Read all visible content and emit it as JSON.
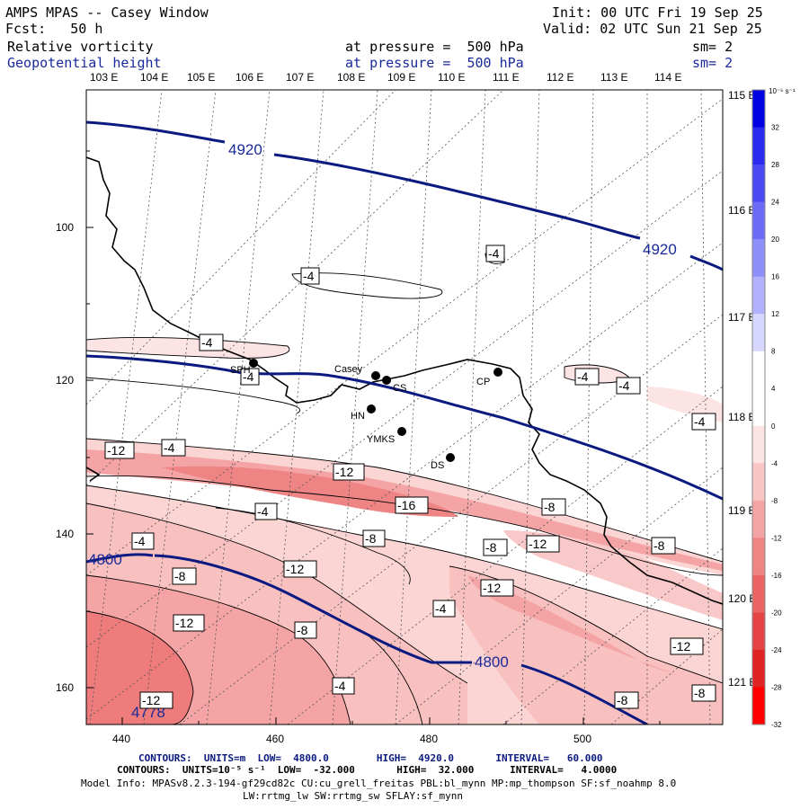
{
  "header": {
    "title": "AMPS MPAS -- Casey Window",
    "init": "Init: 00 UTC Fri 19 Sep 25",
    "fcst": "Fcst:   50 h",
    "valid": "Valid: 02 UTC Sun 21 Sep 25",
    "field1": "Relative vorticity",
    "field1_level": "at pressure =  500 hPa",
    "field1_sm": "sm= 2",
    "field2": "Geopotential height",
    "field2_level": "at pressure =  500 hPa",
    "field2_sm": "sm= 2"
  },
  "lon_top": [
    "103 E",
    "104 E",
    "105 E",
    "106 E",
    "107 E",
    "108 E",
    "109 E",
    "110 E",
    "111 E",
    "112 E",
    "113 E",
    "114 E"
  ],
  "lon_right": [
    "115 E",
    "116 E",
    "117 E",
    "118 E",
    "119 E",
    "120 E",
    "121 E"
  ],
  "y_ticks": [
    "100",
    "120",
    "140",
    "160"
  ],
  "x_ticks": [
    "440",
    "460",
    "480",
    "500"
  ],
  "stations": [
    {
      "name": "Casey"
    },
    {
      "name": "CS"
    },
    {
      "name": "SPH"
    },
    {
      "name": "CP"
    },
    {
      "name": "HN"
    },
    {
      "name": "YMKS"
    },
    {
      "name": "DS"
    }
  ],
  "height_labels": [
    "4920",
    "4920",
    "4800",
    "4800",
    "4778"
  ],
  "vort_labels": [
    "-4",
    "-4",
    "-4",
    "-4",
    "-4",
    "-4",
    "-4",
    "-12",
    "-4",
    "-12",
    "-16",
    "-8",
    "-4",
    "-4",
    "-8",
    "-12",
    "-8",
    "-12",
    "-8",
    "-12",
    "-8",
    "-12",
    "-4",
    "-8",
    "-4",
    "-12",
    "-8",
    "-8",
    "-12",
    "-4",
    "-4"
  ],
  "colorbar": {
    "unit": "10⁻⁵ s⁻¹",
    "labels": [
      "32",
      "28",
      "24",
      "20",
      "16",
      "12",
      "8",
      "4",
      "0",
      "-4",
      "-8",
      "-12",
      "-16",
      "-20",
      "-24",
      "-28",
      "-32"
    ],
    "colors": [
      "#0000e0",
      "#2a2af0",
      "#4a4af5",
      "#6b6bf7",
      "#8f8ffa",
      "#b2b2fc",
      "#d6d6fe",
      "#ffffff",
      "#ffffff",
      "#fde4e4",
      "#f9c4c4",
      "#f4a4a4",
      "#ef8484",
      "#ea6464",
      "#e54444",
      "#e02424",
      "#ff0000"
    ]
  },
  "footer": {
    "line1": "CONTOURS:  UNITS=m  LOW=  4800.0        HIGH=  4920.0       INTERVAL=   60.000",
    "line2": "CONTOURS:  UNITS=10⁻⁵ s⁻¹  LOW=  -32.000       HIGH=  32.000      INTERVAL=   4.0000",
    "line3": "Model Info: MPASv8.2.3-194-gf29cd82c CU:cu_grell_freitas PBL:bl_mynn MP:mp_thompson SF:sf_noahmp 8.0",
    "line4": "LW:rrtmg_lw SW:rrtmg_sw SFLAY:sf_mynn"
  }
}
